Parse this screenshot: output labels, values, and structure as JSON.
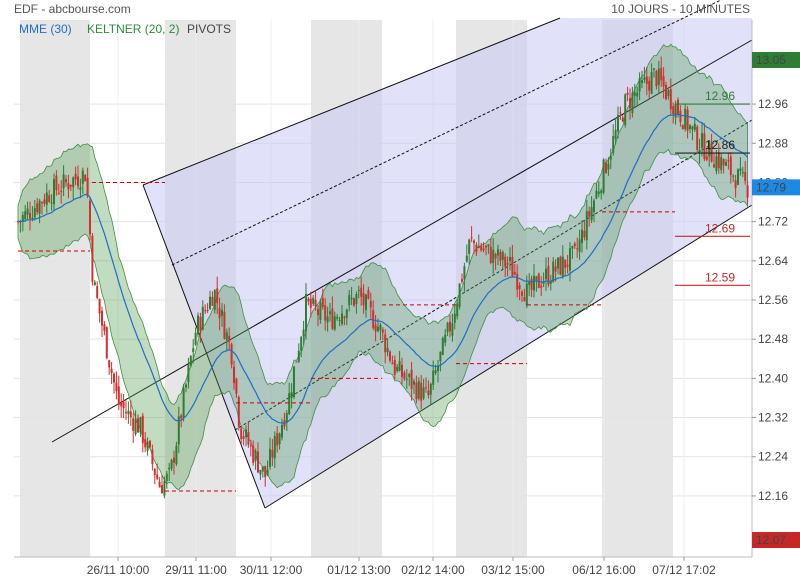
{
  "header": {
    "title": "EDF - abcbourse.com",
    "period": "10 JOURS - 10 MINUTES"
  },
  "legend": [
    {
      "label": "MME (30)",
      "color": "#1f6fbf"
    },
    {
      "label": "KELTNER (20, 2)",
      "color": "#2e8b3a"
    },
    {
      "label": "PIVOTS",
      "color": "#444444"
    }
  ],
  "colors": {
    "up_candle": "#2e7d32",
    "down_candle": "#d32f2f",
    "keltner_fill": "#4f9a4f",
    "channel_fill": "#c8c8f5",
    "session_shade": "#e6e6e6",
    "pivot_line": "#cc0000",
    "last_badge": "#1e88e5",
    "high_badge": "#2e7d32",
    "low_badge": "#c62828"
  },
  "chart_data": {
    "type": "candlestick",
    "instrument": "EDF",
    "interval": "10 minutes",
    "x_labels": [
      "26/11 10:00",
      "29/11 11:00",
      "30/11 12:00",
      "01/12 13:00",
      "02/12 14:00",
      "03/12 15:00",
      "06/12 16:00",
      "07/12 17:02"
    ],
    "y_ticks": [
      12.16,
      12.24,
      12.32,
      12.4,
      12.48,
      12.56,
      12.64,
      12.72,
      12.8,
      12.88,
      12.96
    ],
    "ylim": [
      12.07,
      13.05
    ],
    "price_path": [
      {
        "x": "25/11 09:00",
        "y": 12.72
      },
      {
        "x": "25/11 14:00",
        "y": 12.78
      },
      {
        "x": "25/11 17:30",
        "y": 12.82
      },
      {
        "x": "26/11 09:00",
        "y": 12.6
      },
      {
        "x": "26/11 10:00",
        "y": 12.35
      },
      {
        "x": "26/11 14:00",
        "y": 12.3
      },
      {
        "x": "26/11 17:30",
        "y": 12.18
      },
      {
        "x": "29/11 09:00",
        "y": 12.2
      },
      {
        "x": "29/11 11:00",
        "y": 12.5
      },
      {
        "x": "29/11 14:00",
        "y": 12.58
      },
      {
        "x": "29/11 17:30",
        "y": 12.45
      },
      {
        "x": "30/11 09:00",
        "y": 12.3
      },
      {
        "x": "30/11 12:00",
        "y": 12.2
      },
      {
        "x": "30/11 14:00",
        "y": 12.35
      },
      {
        "x": "30/11 17:30",
        "y": 12.55
      },
      {
        "x": "01/12 10:00",
        "y": 12.52
      },
      {
        "x": "01/12 13:00",
        "y": 12.57
      },
      {
        "x": "01/12 17:30",
        "y": 12.5
      },
      {
        "x": "02/12 10:00",
        "y": 12.42
      },
      {
        "x": "02/12 14:00",
        "y": 12.36
      },
      {
        "x": "02/12 17:30",
        "y": 12.52
      },
      {
        "x": "03/12 10:00",
        "y": 12.68
      },
      {
        "x": "03/12 15:00",
        "y": 12.63
      },
      {
        "x": "03/12 17:30",
        "y": 12.57
      },
      {
        "x": "06/12 09:00",
        "y": 12.6
      },
      {
        "x": "06/12 12:00",
        "y": 12.65
      },
      {
        "x": "06/12 16:00",
        "y": 12.8
      },
      {
        "x": "07/12 09:00",
        "y": 12.96
      },
      {
        "x": "07/12 11:00",
        "y": 13.02
      },
      {
        "x": "07/12 14:00",
        "y": 12.88
      },
      {
        "x": "07/12 17:02",
        "y": 12.79
      }
    ],
    "pivots": [
      {
        "value": 12.96,
        "label": "12.96"
      },
      {
        "value": 12.86,
        "label": "12.86"
      },
      {
        "value": 12.69,
        "label": "12.69"
      },
      {
        "value": 12.59,
        "label": "12.59"
      }
    ],
    "price_badges": [
      {
        "value": 13.05,
        "label": "13.05",
        "role": "high"
      },
      {
        "value": 12.79,
        "label": "12.79",
        "role": "last"
      },
      {
        "value": 12.07,
        "label": "12.07",
        "role": "low"
      }
    ],
    "indicators": [
      "MME (30)",
      "KELTNER (20, 2)",
      "PIVOTS"
    ],
    "grid": true
  }
}
